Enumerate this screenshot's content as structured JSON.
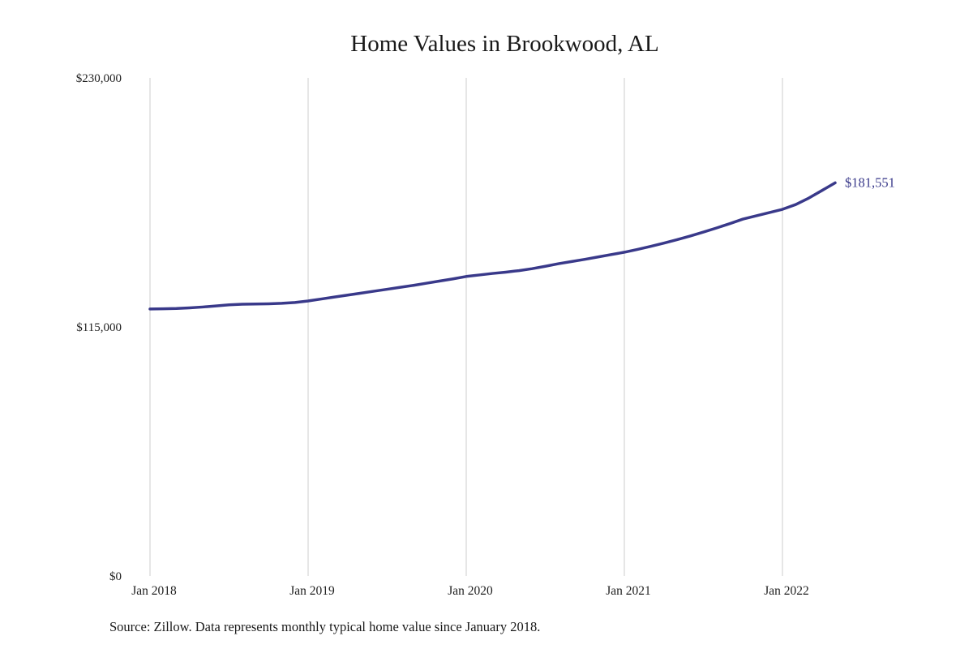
{
  "chart_data": {
    "type": "line",
    "title": "Home Values in Brookwood, AL",
    "xlabel": "",
    "ylabel": "",
    "series_name": "Monthly typical home value",
    "x": [
      "2018-01",
      "2018-02",
      "2018-03",
      "2018-04",
      "2018-05",
      "2018-06",
      "2018-07",
      "2018-08",
      "2018-09",
      "2018-10",
      "2018-11",
      "2018-12",
      "2019-01",
      "2019-02",
      "2019-03",
      "2019-04",
      "2019-05",
      "2019-06",
      "2019-07",
      "2019-08",
      "2019-09",
      "2019-10",
      "2019-11",
      "2019-12",
      "2020-01",
      "2020-02",
      "2020-03",
      "2020-04",
      "2020-05",
      "2020-06",
      "2020-07",
      "2020-08",
      "2020-09",
      "2020-10",
      "2020-11",
      "2020-12",
      "2021-01",
      "2021-02",
      "2021-03",
      "2021-04",
      "2021-05",
      "2021-06",
      "2021-07",
      "2021-08",
      "2021-09",
      "2021-10",
      "2021-11",
      "2021-12",
      "2022-01",
      "2022-02",
      "2022-03",
      "2022-04",
      "2022-05"
    ],
    "values": [
      123300,
      123400,
      123500,
      123800,
      124200,
      124700,
      125200,
      125500,
      125600,
      125700,
      125900,
      126300,
      127000,
      127900,
      128800,
      129700,
      130600,
      131500,
      132400,
      133300,
      134200,
      135200,
      136200,
      137200,
      138300,
      139000,
      139700,
      140300,
      141000,
      141900,
      143000,
      144200,
      145200,
      146200,
      147300,
      148400,
      149500,
      150800,
      152200,
      153700,
      155300,
      157000,
      158800,
      160700,
      162700,
      164800,
      166300,
      167800,
      169300,
      171500,
      174500,
      178000,
      181551
    ],
    "end_label": "$181,551",
    "last_value": 181551,
    "ylim": [
      0,
      230000
    ],
    "y_ticks": [
      {
        "label": "$0",
        "value": 0
      },
      {
        "label": "$115,000",
        "value": 115000
      },
      {
        "label": "$230,000",
        "value": 230000
      }
    ],
    "x_ticks": [
      {
        "label": "Jan 2018",
        "month_index": 0
      },
      {
        "label": "Jan 2019",
        "month_index": 12
      },
      {
        "label": "Jan 2020",
        "month_index": 24
      },
      {
        "label": "Jan 2021",
        "month_index": 36
      },
      {
        "label": "Jan 2022",
        "month_index": 48
      }
    ],
    "grid": "vertical-only",
    "legend": "none",
    "source_note": "Source: Zillow. Data represents monthly typical home value since January 2018.",
    "colors": {
      "line": "#39398a",
      "grid": "#cccccc",
      "text": "#1f1f1f",
      "background": "#ffffff"
    }
  }
}
